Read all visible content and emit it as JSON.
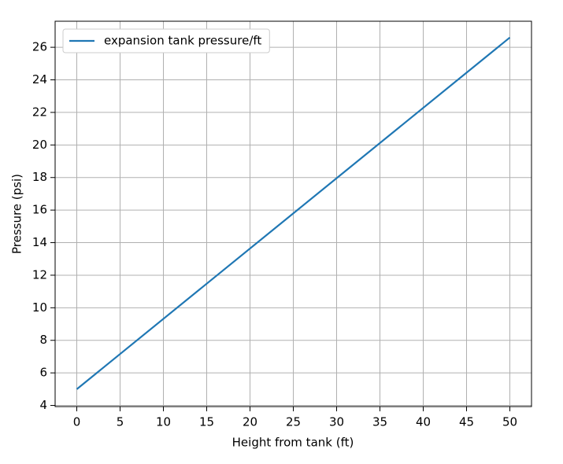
{
  "chart_data": {
    "type": "line",
    "xlabel": "Height from tank (ft)",
    "ylabel": "Pressure (psi)",
    "x": [
      0,
      50
    ],
    "series": [
      {
        "name": "expansion tank pressure/ft",
        "color": "#1f77b4",
        "values": [
          5,
          26.6
        ]
      }
    ],
    "xlim": [
      -2.5,
      52.5
    ],
    "xticks": [
      0,
      5,
      10,
      15,
      20,
      25,
      30,
      35,
      40,
      45,
      50
    ],
    "ylim": [
      3.93,
      27.6
    ],
    "yticks": [
      4,
      6,
      8,
      10,
      12,
      14,
      16,
      18,
      20,
      22,
      24,
      26
    ],
    "grid": true,
    "legend": "upper-left"
  }
}
